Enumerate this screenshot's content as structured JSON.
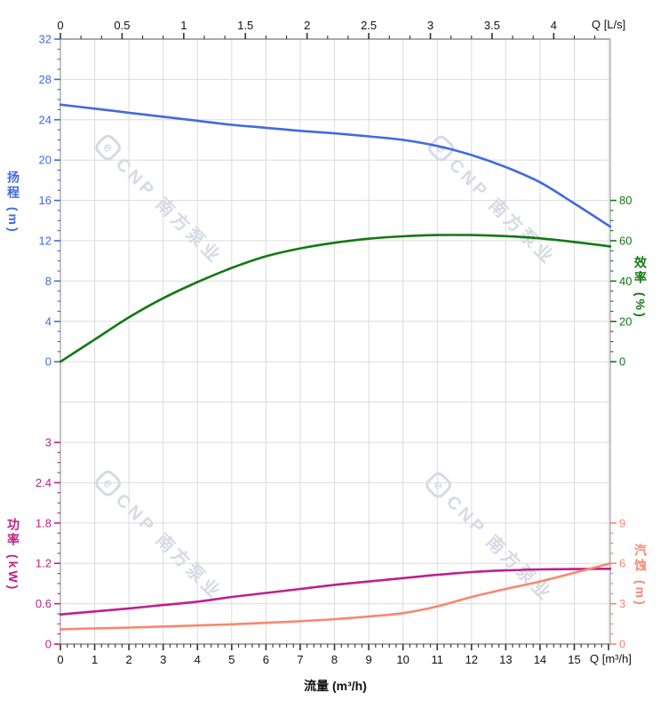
{
  "watermark": {
    "logo": "e",
    "text": "CNP 南方泵业"
  },
  "colors": {
    "head": "#4169E1",
    "efficiency": "#127912",
    "power": "#C0208C",
    "npsh": "#F9876F",
    "grid": "#DBDBDB",
    "frame": "#AAAAAA",
    "axis_text": "#111111",
    "watermark": "#CBD2DE"
  },
  "chart_data": {
    "type": "line",
    "title": "",
    "x_bottom": {
      "title": "流量 (m³/h)",
      "unit_label": "Q [m³/h]",
      "min": 0,
      "max": 16.05,
      "major_ticks": [
        0,
        1,
        2,
        3,
        4,
        5,
        6,
        7,
        8,
        9,
        10,
        11,
        12,
        13,
        14,
        15
      ],
      "minor_step": 0.2
    },
    "x_top": {
      "unit_label": "Q [L/s]",
      "min": 0,
      "max": 4.458,
      "major_ticks": [
        0,
        0.5,
        1,
        1.5,
        2,
        2.5,
        3,
        3.5,
        4
      ],
      "minor_step": 0.16667,
      "to_m3h_factor": 3.6
    },
    "axes": {
      "head": {
        "title": "扬程 (m)",
        "side": "left",
        "color": "#4169E1",
        "ylim": [
          0,
          32
        ],
        "ticks": [
          0,
          4,
          8,
          12,
          16,
          20,
          24,
          28,
          32
        ],
        "zero_row": 8,
        "units_per_row": 4
      },
      "efficiency": {
        "title": "效率 (%)",
        "side": "right",
        "color": "#127912",
        "ylim": [
          0,
          80
        ],
        "ticks": [
          0,
          20,
          40,
          60,
          80
        ],
        "zero_row": 8,
        "units_per_row": 20
      },
      "power": {
        "title": "功率 (kW)",
        "side": "left",
        "color": "#C0208C",
        "ylim": [
          0,
          3
        ],
        "ticks": [
          0,
          0.6,
          1.2,
          1.8,
          2.4,
          3
        ],
        "zero_row": 15,
        "units_per_row": 0.6
      },
      "npsh": {
        "title": "汽蚀 (m)",
        "side": "right",
        "color": "#F9876F",
        "ylim": [
          0,
          9
        ],
        "ticks": [
          0,
          3,
          6,
          9
        ],
        "zero_row": 15,
        "units_per_row": 3
      }
    },
    "series": [
      {
        "name": "head",
        "axis": "head",
        "color": "#4169E1",
        "x": [
          0,
          1,
          2,
          3,
          4,
          5,
          6,
          7,
          8,
          9,
          10,
          11,
          12,
          13,
          14,
          15,
          16.05
        ],
        "y": [
          25.5,
          25.1,
          24.7,
          24.3,
          23.9,
          23.5,
          23.2,
          22.9,
          22.65,
          22.35,
          22.0,
          21.4,
          20.5,
          19.3,
          17.8,
          15.7,
          13.4
        ]
      },
      {
        "name": "efficiency",
        "axis": "efficiency",
        "color": "#127912",
        "x": [
          0,
          1,
          2,
          3,
          4,
          5,
          6,
          7,
          8,
          9,
          10,
          11,
          12,
          13,
          14,
          15,
          16.05
        ],
        "y": [
          0,
          11,
          22,
          31.5,
          39.5,
          46.5,
          52.3,
          56.2,
          59.0,
          61.0,
          62.2,
          62.8,
          62.8,
          62.3,
          61.2,
          59.4,
          57.2
        ]
      },
      {
        "name": "power",
        "axis": "power",
        "color": "#C0208C",
        "x": [
          0,
          1,
          2,
          3,
          4,
          5,
          6,
          7,
          8,
          9,
          10,
          11,
          12,
          13,
          14,
          15,
          16.05
        ],
        "y": [
          0.44,
          0.485,
          0.53,
          0.58,
          0.63,
          0.7,
          0.76,
          0.82,
          0.88,
          0.93,
          0.98,
          1.03,
          1.07,
          1.095,
          1.11,
          1.115,
          1.12
        ]
      },
      {
        "name": "npsh",
        "axis": "npsh",
        "color": "#F9876F",
        "x": [
          0,
          1,
          2,
          3,
          4,
          5,
          6,
          7,
          8,
          9,
          10,
          11,
          12,
          13,
          14,
          15,
          16.05
        ],
        "y": [
          1.1,
          1.16,
          1.22,
          1.3,
          1.38,
          1.47,
          1.58,
          1.7,
          1.85,
          2.05,
          2.3,
          2.8,
          3.5,
          4.1,
          4.65,
          5.3,
          6.0
        ]
      }
    ],
    "grid": "on",
    "legend": "none"
  }
}
